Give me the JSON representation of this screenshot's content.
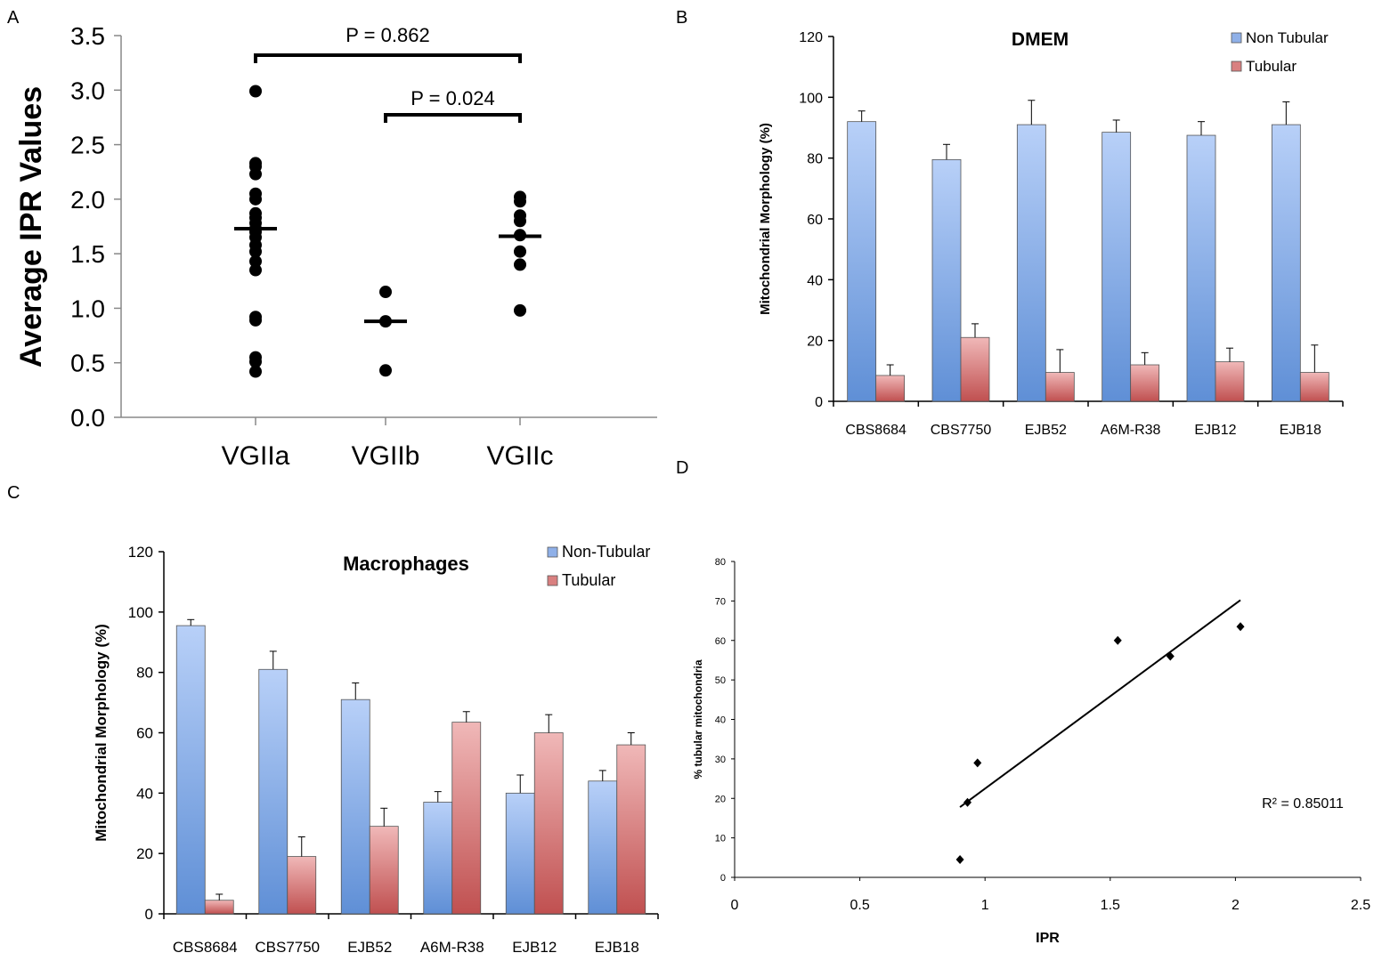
{
  "panels": [
    {
      "letter": "A"
    },
    {
      "letter": "B"
    },
    {
      "letter": "C"
    },
    {
      "letter": "D"
    }
  ],
  "chart_data": [
    {
      "panel": "A",
      "type": "scatter",
      "ylabel": "Average IPR Values",
      "categories": [
        "VGIIa",
        "VGIIb",
        "VGIIc"
      ],
      "ylim": [
        0,
        3.5
      ],
      "yticks": [
        "0.0",
        "0.5",
        "1.0",
        "1.5",
        "2.0",
        "2.5",
        "3.0",
        "3.5"
      ],
      "groups": [
        {
          "name": "VGIIa",
          "values": [
            2.99,
            2.33,
            2.3,
            2.23,
            2.05,
            2.0,
            1.87,
            1.83,
            1.78,
            1.73,
            1.7,
            1.65,
            1.58,
            1.52,
            1.43,
            1.35,
            0.92,
            0.89,
            0.55,
            0.51,
            0.42
          ],
          "mean": 1.73
        },
        {
          "name": "VGIIb",
          "values": [
            1.15,
            0.88,
            0.43
          ],
          "mean": 0.88
        },
        {
          "name": "VGIIc",
          "values": [
            2.02,
            1.98,
            1.85,
            1.8,
            1.67,
            1.52,
            1.4,
            0.98
          ],
          "mean": 1.66
        }
      ],
      "comparisons": [
        {
          "label": "P = 0.862",
          "from": "VGIIa",
          "to": "VGIIc"
        },
        {
          "label": "P = 0.024",
          "from": "VGIIb",
          "to": "VGIIc"
        }
      ]
    },
    {
      "panel": "B",
      "type": "bar",
      "title": "DMEM",
      "ylabel": "Mitochondrial Morphology (%)",
      "categories": [
        "CBS8684",
        "CBS7750",
        "EJB52",
        "A6M-R38",
        "EJB12",
        "EJB18"
      ],
      "ylim": [
        0,
        120
      ],
      "yticks": [
        "0",
        "20",
        "40",
        "60",
        "80",
        "100",
        "120"
      ],
      "legend_position": "top-right",
      "series": [
        {
          "name": "Non Tubular",
          "values": [
            92,
            79.5,
            91,
            88.5,
            87.5,
            91
          ],
          "errors": [
            3.5,
            5,
            8,
            4,
            4.5,
            7.5
          ],
          "color": "#8fb0e8"
        },
        {
          "name": "Tubular",
          "values": [
            8.5,
            21,
            9.5,
            12,
            13,
            9.5
          ],
          "errors": [
            3.5,
            4.5,
            7.5,
            4,
            4.5,
            9
          ],
          "color": "#d98080"
        }
      ]
    },
    {
      "panel": "C",
      "type": "bar",
      "title": "Macrophages",
      "ylabel": "Mitochondrial Morphology (%)",
      "categories": [
        "CBS8684",
        "CBS7750",
        "EJB52",
        "A6M-R38",
        "EJB12",
        "EJB18"
      ],
      "ylim": [
        0,
        120
      ],
      "yticks": [
        "0",
        "20",
        "40",
        "60",
        "80",
        "100",
        "120"
      ],
      "legend_position": "top-right",
      "series": [
        {
          "name": "Non-Tubular",
          "values": [
            95.5,
            81,
            71,
            37,
            40,
            44
          ],
          "errors": [
            2,
            6,
            5.5,
            3.5,
            6,
            3.5
          ],
          "color": "#8fb0e8"
        },
        {
          "name": "Tubular",
          "values": [
            4.5,
            19,
            29,
            63.5,
            60,
            56
          ],
          "errors": [
            2,
            6.5,
            6,
            3.5,
            6,
            4
          ],
          "color": "#d98080"
        }
      ]
    },
    {
      "panel": "D",
      "type": "scatter",
      "xlabel": "IPR",
      "ylabel": "% tubular mitochondria",
      "xlim": [
        0,
        2.5
      ],
      "ylim": [
        0,
        80
      ],
      "xticks": [
        "0",
        "0.5",
        "1",
        "1.5",
        "2",
        "2.5"
      ],
      "yticks": [
        "0",
        "10",
        "20",
        "30",
        "40",
        "50",
        "60",
        "70",
        "80"
      ],
      "points": [
        {
          "x": 0.9,
          "y": 4.5
        },
        {
          "x": 0.93,
          "y": 19
        },
        {
          "x": 0.97,
          "y": 29
        },
        {
          "x": 1.53,
          "y": 60
        },
        {
          "x": 1.74,
          "y": 56
        },
        {
          "x": 2.02,
          "y": 63.5
        }
      ],
      "trendline": {
        "x": [
          0.9,
          2.02
        ],
        "y": [
          17.8,
          70.2
        ]
      },
      "annotation": "R² = 0.85011"
    }
  ]
}
